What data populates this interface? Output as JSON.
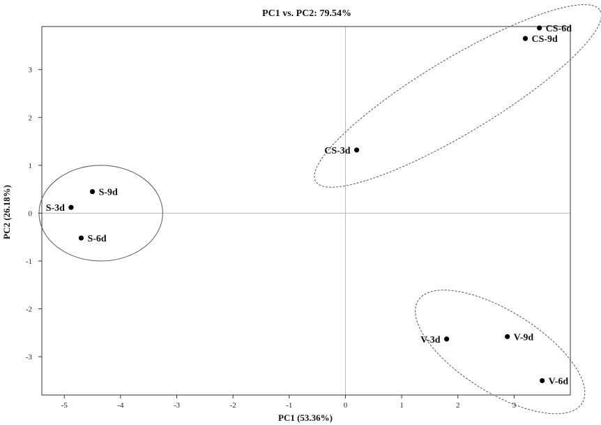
{
  "chart_data": {
    "type": "scatter",
    "title": "PC1 vs. PC2: 79.54%",
    "xlabel": "PC1 (53.36%)",
    "ylabel": "PC2 (26.18%)",
    "xlim": [
      -5.4,
      4.0
    ],
    "ylim": [
      -3.8,
      3.9
    ],
    "x_ticks": [
      -5,
      -4,
      -3,
      -2,
      -1,
      0,
      1,
      2,
      3
    ],
    "y_ticks": [
      -3,
      -2,
      -1,
      0,
      1,
      2,
      3
    ],
    "grid": "zero lines only",
    "points": [
      {
        "label": "S-3d",
        "x": -4.88,
        "y": 0.12
      },
      {
        "label": "S-6d",
        "x": -4.7,
        "y": -0.52
      },
      {
        "label": "S-9d",
        "x": -4.5,
        "y": 0.45
      },
      {
        "label": "CS-3d",
        "x": 0.2,
        "y": 1.32
      },
      {
        "label": "CS-6d",
        "x": 3.45,
        "y": 3.87
      },
      {
        "label": "CS-9d",
        "x": 3.2,
        "y": 3.65
      },
      {
        "label": "V-3d",
        "x": 1.8,
        "y": -2.63
      },
      {
        "label": "V-6d",
        "x": 3.5,
        "y": -3.5
      },
      {
        "label": "V-9d",
        "x": 2.88,
        "y": -2.58
      }
    ],
    "groups": [
      {
        "members": [
          "S-3d",
          "S-6d",
          "S-9d"
        ],
        "cx": -4.35,
        "cy": 0.0,
        "rx": 1.1,
        "ry": 1.0,
        "rotation": 0,
        "style": "solid"
      },
      {
        "members": [
          "CS-3d",
          "CS-6d",
          "CS-9d"
        ],
        "cx": 2.0,
        "cy": 2.45,
        "rx": 2.95,
        "ry": 0.78,
        "rotation": -31,
        "style": "dashed"
      },
      {
        "members": [
          "V-3d",
          "V-6d",
          "V-9d"
        ],
        "cx": 2.75,
        "cy": -2.9,
        "rx": 1.72,
        "ry": 0.85,
        "rotation": 32,
        "style": "dashed"
      }
    ],
    "label_offsets": {
      "S-3d": "left",
      "S-6d": "right",
      "S-9d": "right",
      "CS-3d": "left",
      "CS-6d": "right",
      "CS-9d": "right",
      "V-3d": "left",
      "V-6d": "right",
      "V-9d": "right"
    }
  }
}
